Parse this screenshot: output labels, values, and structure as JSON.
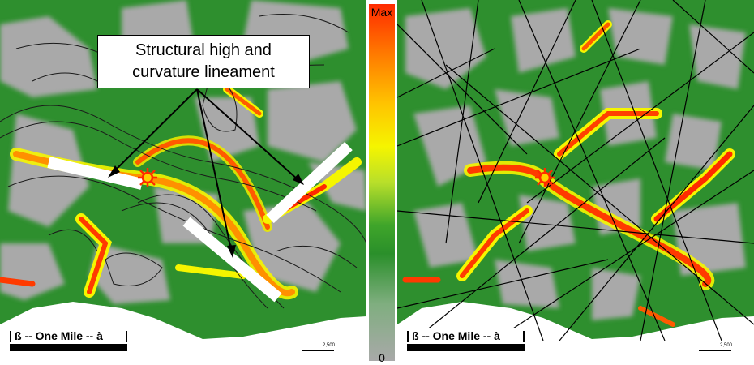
{
  "callout": {
    "line1": "Structural high and",
    "line2": "curvature lineament"
  },
  "colorbar": {
    "max_label": "Max",
    "min_label": "0"
  },
  "scale_left": {
    "label": "ß -- One Mile -- à"
  },
  "scale_right": {
    "label": "ß -- One Mile -- à"
  },
  "mini_scale": {
    "value": "2,500"
  },
  "colors": {
    "low": "#a9a9a9",
    "mid_green": "#2a8f2a",
    "yellow": "#f5f500",
    "high": "#ff2a00",
    "marker": "#ff2a00",
    "annotation_bar": "#ffffff"
  }
}
